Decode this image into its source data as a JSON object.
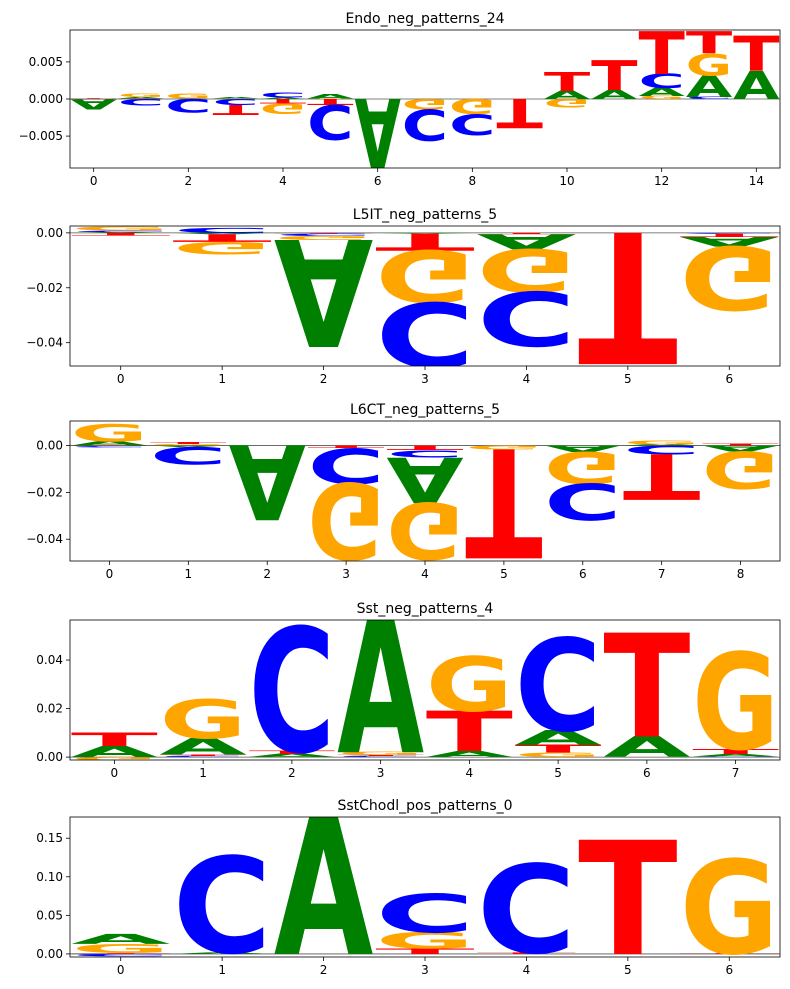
{
  "colors": {
    "A": "#008000",
    "C": "#0000ff",
    "G": "#ffa500",
    "T": "#ff0000"
  },
  "chart_data": [
    {
      "type": "sequence-logo",
      "title": "Endo_neg_patterns_24",
      "xlim": [
        -0.5,
        14.5
      ],
      "ylim": [
        -0.0093,
        0.0093
      ],
      "xticks": [
        0,
        2,
        4,
        6,
        8,
        10,
        12,
        14
      ],
      "yticks": [
        -0.005,
        0.0,
        0.005
      ],
      "ytick_labels": [
        "−0.005",
        "0.000",
        "0.005"
      ],
      "positions": [
        {
          "pos": 0,
          "letters": {
            "A": -0.0013,
            "C": -0.0001,
            "G": 0.0001,
            "T": 0.0001
          }
        },
        {
          "pos": 1,
          "letters": {
            "A": 0.0002,
            "C": -0.0009,
            "G": 0.0004,
            "T": 0.0001
          }
        },
        {
          "pos": 2,
          "letters": {
            "A": 0.0001,
            "C": -0.0018,
            "G": 0.0007,
            "T": 0.0
          }
        },
        {
          "pos": 3,
          "letters": {
            "A": 0.0002,
            "C": -0.0008,
            "G": 0.0001,
            "T": -0.0013
          }
        },
        {
          "pos": 4,
          "letters": {
            "A": 0.0002,
            "C": 0.0007,
            "G": -0.0014,
            "T": -0.0006
          }
        },
        {
          "pos": 5,
          "letters": {
            "A": 0.0006,
            "C": -0.0046,
            "G": 0.0001,
            "T": -0.0008
          }
        },
        {
          "pos": 6,
          "letters": {
            "A": -0.0093,
            "C": 0.0,
            "G": 0.0,
            "T": 0.0
          }
        },
        {
          "pos": 7,
          "letters": {
            "A": 0.0,
            "C": -0.0042,
            "G": -0.0014,
            "T": 0.0
          }
        },
        {
          "pos": 8,
          "letters": {
            "A": 0.0,
            "C": -0.0028,
            "G": -0.002,
            "T": 0.0
          }
        },
        {
          "pos": 9,
          "letters": {
            "A": 0.0,
            "C": 0.0,
            "G": 0.0,
            "T": -0.0039
          }
        },
        {
          "pos": 10,
          "letters": {
            "A": 0.0011,
            "C": 0.0,
            "G": -0.0011,
            "T": 0.0025
          }
        },
        {
          "pos": 11,
          "letters": {
            "A": 0.0012,
            "C": 0.0,
            "G": 0.0,
            "T": 0.004
          }
        },
        {
          "pos": 12,
          "letters": {
            "A": 0.0011,
            "C": 0.0019,
            "G": 0.0004,
            "T": 0.0058
          }
        },
        {
          "pos": 13,
          "letters": {
            "A": 0.0029,
            "C": 0.0003,
            "G": 0.0029,
            "T": 0.003
          }
        },
        {
          "pos": 14,
          "letters": {
            "A": 0.0038,
            "C": 0.0,
            "G": 0.0,
            "T": 0.0047
          }
        }
      ]
    },
    {
      "type": "sequence-logo",
      "title": "L5IT_neg_patterns_5",
      "xlim": [
        -0.5,
        6.5
      ],
      "ylim": [
        -0.0485,
        0.0025
      ],
      "xticks": [
        0,
        1,
        2,
        3,
        4,
        5,
        6
      ],
      "yticks": [
        -0.04,
        -0.02,
        0.0
      ],
      "ytick_labels": [
        "−0.04",
        "−0.02",
        "0.00"
      ],
      "positions": [
        {
          "pos": 0,
          "letters": {
            "A": 0.0003,
            "C": 0.0005,
            "G": 0.0013,
            "T": -0.001
          }
        },
        {
          "pos": 1,
          "letters": {
            "A": -0.0005,
            "C": 0.0018,
            "G": -0.0045,
            "T": -0.0028
          }
        },
        {
          "pos": 2,
          "letters": {
            "A": -0.039,
            "C": -0.0008,
            "G": -0.0015,
            "T": -0.0003
          }
        },
        {
          "pos": 3,
          "letters": {
            "A": -0.0003,
            "C": -0.0235,
            "G": -0.019,
            "T": -0.0062
          }
        },
        {
          "pos": 4,
          "letters": {
            "A": -0.0055,
            "C": -0.0198,
            "G": -0.0155,
            "T": -0.0005
          }
        },
        {
          "pos": 5,
          "letters": {
            "A": 0.0,
            "C": 0.0,
            "G": 0.0,
            "T": -0.0478
          }
        },
        {
          "pos": 6,
          "letters": {
            "A": -0.0035,
            "C": -0.0003,
            "G": -0.0232,
            "T": -0.0012
          }
        }
      ]
    },
    {
      "type": "sequence-logo",
      "title": "L6CT_neg_patterns_5",
      "xlim": [
        -0.5,
        8.5
      ],
      "ylim": [
        -0.0493,
        0.0105
      ],
      "xticks": [
        0,
        1,
        2,
        3,
        4,
        5,
        6,
        7,
        8
      ],
      "yticks": [
        -0.04,
        -0.02,
        0.0
      ],
      "ytick_labels": [
        "−0.04",
        "−0.02",
        "0.00"
      ],
      "positions": [
        {
          "pos": 0,
          "letters": {
            "A": 0.0018,
            "C": -0.0004,
            "G": 0.0075,
            "T": -0.0002
          }
        },
        {
          "pos": 1,
          "letters": {
            "A": -0.0005,
            "C": -0.0075,
            "G": 0.0006,
            "T": 0.0008
          }
        },
        {
          "pos": 2,
          "letters": {
            "A": -0.0318,
            "C": 0.0,
            "G": 0.0,
            "T": 0.0
          }
        },
        {
          "pos": 3,
          "letters": {
            "A": 0.0,
            "C": -0.015,
            "G": -0.0325,
            "T": -0.0012
          }
        },
        {
          "pos": 4,
          "letters": {
            "A": -0.0195,
            "C": -0.003,
            "G": -0.0242,
            "T": -0.002
          }
        },
        {
          "pos": 5,
          "letters": {
            "A": 0.0,
            "C": 0.0,
            "G": -0.0017,
            "T": -0.0465
          }
        },
        {
          "pos": 6,
          "letters": {
            "A": -0.0028,
            "C": -0.0155,
            "G": -0.0135,
            "T": 0.0
          }
        },
        {
          "pos": 7,
          "letters": {
            "A": 0.0005,
            "C": -0.0038,
            "G": 0.0015,
            "T": -0.0195
          }
        },
        {
          "pos": 8,
          "letters": {
            "A": -0.0025,
            "C": 0.0,
            "G": -0.0158,
            "T": 0.0008
          }
        }
      ]
    },
    {
      "type": "sequence-logo",
      "title": "Sst_neg_patterns_4",
      "xlim": [
        -0.5,
        7.5
      ],
      "ylim": [
        -0.0012,
        0.0565
      ],
      "xticks": [
        0,
        1,
        2,
        3,
        4,
        5,
        6,
        7
      ],
      "yticks": [
        0.0,
        0.02,
        0.04
      ],
      "ytick_labels": [
        "0.00",
        "0.02",
        "0.04"
      ],
      "positions": [
        {
          "pos": 0,
          "letters": {
            "A": 0.0045,
            "C": 0.0,
            "G": -0.0012,
            "T": 0.0056
          }
        },
        {
          "pos": 1,
          "letters": {
            "A": 0.0068,
            "C": 0.0005,
            "G": 0.016,
            "T": 0.0005
          }
        },
        {
          "pos": 2,
          "letters": {
            "A": 0.0012,
            "C": 0.0513,
            "G": 0.0,
            "T": 0.0012
          }
        },
        {
          "pos": 3,
          "letters": {
            "A": 0.0565,
            "C": 0.0004,
            "G": 0.0012,
            "T": 0.0004
          }
        },
        {
          "pos": 4,
          "letters": {
            "A": 0.0025,
            "C": 0.0,
            "G": 0.0225,
            "T": 0.0165
          }
        },
        {
          "pos": 5,
          "letters": {
            "A": 0.0062,
            "C": 0.0381,
            "G": 0.0018,
            "T": 0.0032
          }
        },
        {
          "pos": 6,
          "letters": {
            "A": 0.0085,
            "C": 0.0,
            "G": 0.0,
            "T": 0.0428
          }
        },
        {
          "pos": 7,
          "letters": {
            "A": 0.001,
            "C": 0.0003,
            "G": 0.0398,
            "T": 0.0022
          }
        }
      ]
    },
    {
      "type": "sequence-logo",
      "title": "SstChodl_pos_patterns_0",
      "xlim": [
        -0.5,
        6.5
      ],
      "ylim": [
        -0.004,
        0.1775
      ],
      "xticks": [
        0,
        1,
        2,
        3,
        4,
        5,
        6
      ],
      "yticks": [
        0.0,
        0.05,
        0.1,
        0.15
      ],
      "ytick_labels": [
        "0.00",
        "0.05",
        "0.10",
        "0.15"
      ],
      "positions": [
        {
          "pos": 0,
          "letters": {
            "A": 0.013,
            "C": -0.003,
            "G": 0.012,
            "T": 0.001
          }
        },
        {
          "pos": 1,
          "letters": {
            "A": 0.002,
            "C": 0.125,
            "G": 0.0,
            "T": 0.0
          }
        },
        {
          "pos": 2,
          "letters": {
            "A": 0.1775,
            "C": 0.0,
            "G": 0.0,
            "T": 0.0
          }
        },
        {
          "pos": 3,
          "letters": {
            "A": 0.0,
            "C": 0.05,
            "G": 0.021,
            "T": 0.007
          }
        },
        {
          "pos": 4,
          "letters": {
            "A": 0.0,
            "C": 0.115,
            "G": 0.0,
            "T": 0.002
          }
        },
        {
          "pos": 5,
          "letters": {
            "A": 0.0,
            "C": 0.0,
            "G": 0.0,
            "T": 0.148
          }
        },
        {
          "pos": 6,
          "letters": {
            "A": 0.0,
            "C": 0.0,
            "G": 0.122,
            "T": 0.001
          }
        }
      ]
    }
  ]
}
